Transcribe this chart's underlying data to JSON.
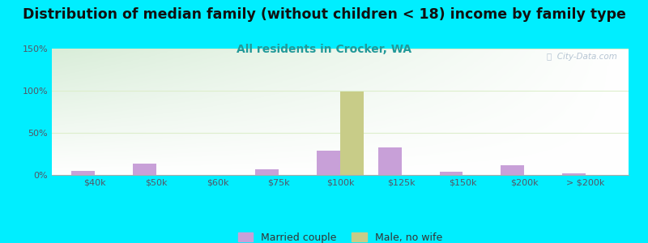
{
  "title": "Distribution of median family (without children < 18) income by family type",
  "subtitle": "All residents in Crocker, WA",
  "categories": [
    "$40k",
    "$50k",
    "$60k",
    "$75k",
    "$100k",
    "$125k",
    "$150k",
    "$200k",
    "> $200k"
  ],
  "married_couple": [
    5,
    13,
    0,
    7,
    29,
    33,
    4,
    12,
    2
  ],
  "male_no_wife": [
    0,
    0,
    0,
    0,
    99,
    0,
    0,
    0,
    0
  ],
  "married_color": "#c8a0d8",
  "male_color": "#c8cc88",
  "background_outer": "#00eeff",
  "ylim": [
    0,
    150
  ],
  "yticks": [
    0,
    50,
    100,
    150
  ],
  "ytick_labels": [
    "0%",
    "50%",
    "100%",
    "150%"
  ],
  "title_fontsize": 12.5,
  "subtitle_fontsize": 10,
  "subtitle_color": "#229999",
  "bar_width": 0.38,
  "watermark": "ⓘ  City-Data.com",
  "tick_color": "#555566",
  "grid_color": "#ddeecc"
}
